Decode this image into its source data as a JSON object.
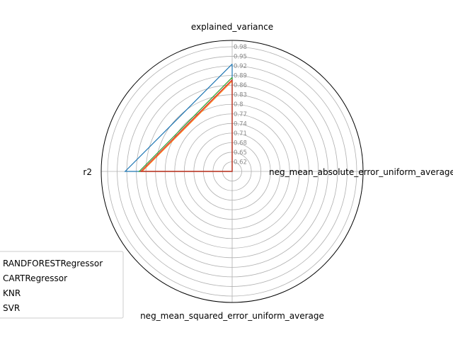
{
  "chart_data": {
    "type": "radar",
    "axes": [
      "explained_variance",
      "neg_mean_absolute_error_uniform_average",
      "neg_mean_squared_error_uniform_average",
      "r2"
    ],
    "rticks": [
      "0.62",
      "0.65",
      "0.68",
      "0.71",
      "0.74",
      "0.77",
      "0.8",
      "0.83",
      "0.86",
      "0.89",
      "0.92",
      "0.95",
      "0.98"
    ],
    "rlim": [
      0.59,
      1.0
    ],
    "grid": true,
    "legend_position": "lower-left",
    "series": [
      {
        "name": "RANDFORESTRegressor",
        "color": "#1f77b4",
        "values": [
          0.926,
          0.59,
          0.59,
          0.925
        ]
      },
      {
        "name": "CARTRegressor",
        "color": "#ff7f0e",
        "values": [
          0.873,
          0.59,
          0.59,
          0.872
        ]
      },
      {
        "name": "KNR",
        "color": "#2ca02c",
        "values": [
          0.884,
          0.59,
          0.59,
          0.881
        ]
      },
      {
        "name": "SVR",
        "color": "#d62728",
        "values": [
          0.877,
          0.59,
          0.59,
          0.876
        ]
      }
    ]
  }
}
